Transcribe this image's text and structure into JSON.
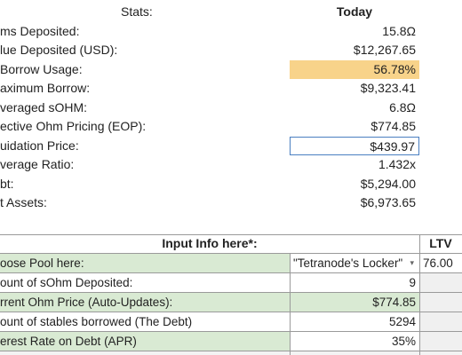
{
  "stats_header": {
    "label": "Stats:",
    "column": "Today"
  },
  "stats": [
    {
      "label": "ms Deposited:",
      "value": "15.8Ω"
    },
    {
      "label": "lue Deposited (USD):",
      "value": "$12,267.65"
    },
    {
      "label": "Borrow Usage:",
      "value": "56.78%"
    },
    {
      "label": "aximum Borrow:",
      "value": "$9,323.41"
    },
    {
      "label": "veraged sOHM:",
      "value": "6.8Ω"
    },
    {
      "label": "ective Ohm Pricing (EOP):",
      "value": "$774.85"
    },
    {
      "label": "uidation Price:",
      "value": "$439.97"
    },
    {
      "label": "verage Ratio:",
      "value": "1.432x"
    },
    {
      "label": "bt:",
      "value": "$5,294.00"
    },
    {
      "label": "t Assets:",
      "value": "$6,973.65"
    }
  ],
  "input_table": {
    "header": "Input Info here*:",
    "extra_header": "LTV",
    "rows": [
      {
        "label": "oose Pool here:",
        "value": "\"Tetranode's Locker\"",
        "extra": "76.00",
        "dropdown": true
      },
      {
        "label": "ount of sOhm Deposited:",
        "value": "9",
        "extra": ""
      },
      {
        "label": "rrent Ohm Price (Auto-Updates):",
        "value": "$774.85",
        "extra": ""
      },
      {
        "label": "ount of stables borrowed (The Debt)",
        "value": "5294",
        "extra": ""
      },
      {
        "label": "erest Rate on Debt (APR)",
        "value": "35%",
        "extra": ""
      }
    ]
  },
  "colors": {
    "highlight_orange": "#f8d38a",
    "input_green": "#d9ead3",
    "selection_border": "#4a7fc1"
  }
}
